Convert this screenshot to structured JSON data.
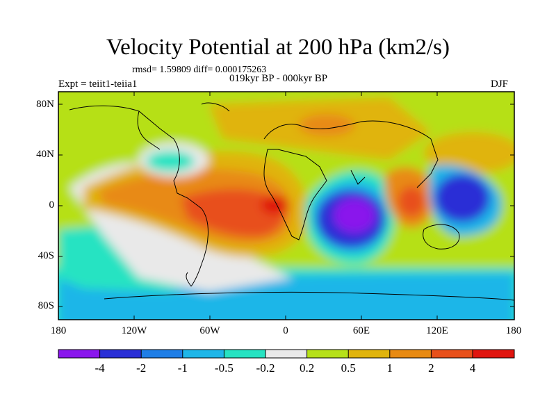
{
  "title": "Velocity Potential at 200 hPa (km2/s)",
  "stats": "rmsd= 1.59809 diff= 0.000175263",
  "experiment": "Expt = teiit1-teiia1",
  "period": "019kyr BP - 000kyr BP",
  "season": "DJF",
  "lat_labels": [
    "80N",
    "40N",
    "0",
    "40S",
    "80S"
  ],
  "lon_labels": [
    "180",
    "120W",
    "60W",
    "0",
    "60E",
    "120E",
    "180"
  ],
  "colorbar": {
    "labels": [
      "-4",
      "-2",
      "-1",
      "-0.5",
      "-0.2",
      "0.2",
      "0.5",
      "1",
      "2",
      "4"
    ],
    "colors": [
      "#8a16ec",
      "#2a2fd6",
      "#1f7ee6",
      "#1fb6e8",
      "#27e3c2",
      "#e9e9e9",
      "#b6e019",
      "#e0b40c",
      "#e88a12",
      "#e8501a",
      "#e0150f"
    ]
  },
  "colors": {
    "frame": "#000000",
    "coast": "#000000"
  }
}
